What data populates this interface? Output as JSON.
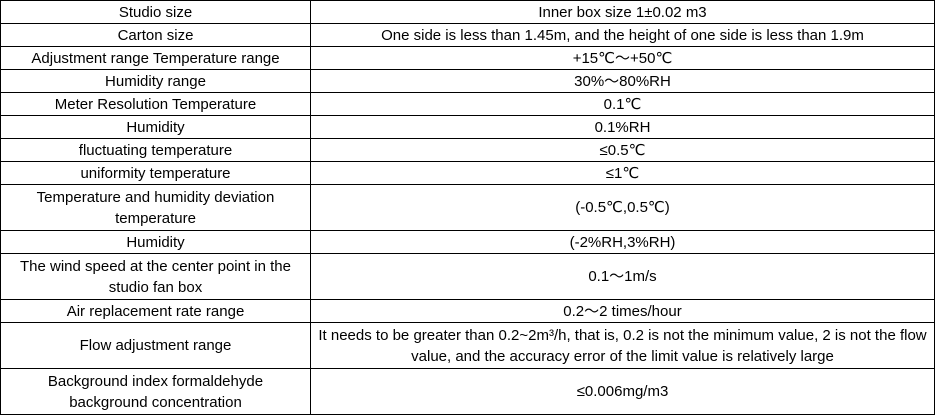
{
  "table": {
    "rows": [
      {
        "label": "Studio size",
        "value": "Inner box size 1±0.02 m3"
      },
      {
        "label": "Carton size",
        "value": "One side is less than 1.45m, and the height of one side is less than 1.9m"
      },
      {
        "label": "Adjustment range Temperature range",
        "value": "+15℃～+50℃"
      },
      {
        "label": "Humidity range",
        "value": "30%～80%RH"
      },
      {
        "label": "Meter Resolution Temperature",
        "value": "0.1℃"
      },
      {
        "label": "Humidity",
        "value": "0.1%RH"
      },
      {
        "label": "fluctuating temperature",
        "value": "≤0.5℃"
      },
      {
        "label": "uniformity temperature",
        "value": "≤1℃"
      },
      {
        "label": "Temperature and humidity deviation temperature",
        "value": "(-0.5℃,0.5℃)"
      },
      {
        "label": "Humidity",
        "value": "(-2%RH,3%RH)"
      },
      {
        "label": "The wind speed at the center point in the studio fan box",
        "value": "0.1～1m/s"
      },
      {
        "label": "Air replacement rate range",
        "value": "0.2～2 times/hour"
      },
      {
        "label": "Flow adjustment range",
        "value": "It needs to be greater than 0.2~2m³/h, that is, 0.2 is not the minimum value, 2 is not the flow value, and the accuracy error of the limit value is relatively large"
      },
      {
        "label": "Background index formaldehyde background concentration",
        "value": "≤0.006mg/m3"
      }
    ]
  }
}
